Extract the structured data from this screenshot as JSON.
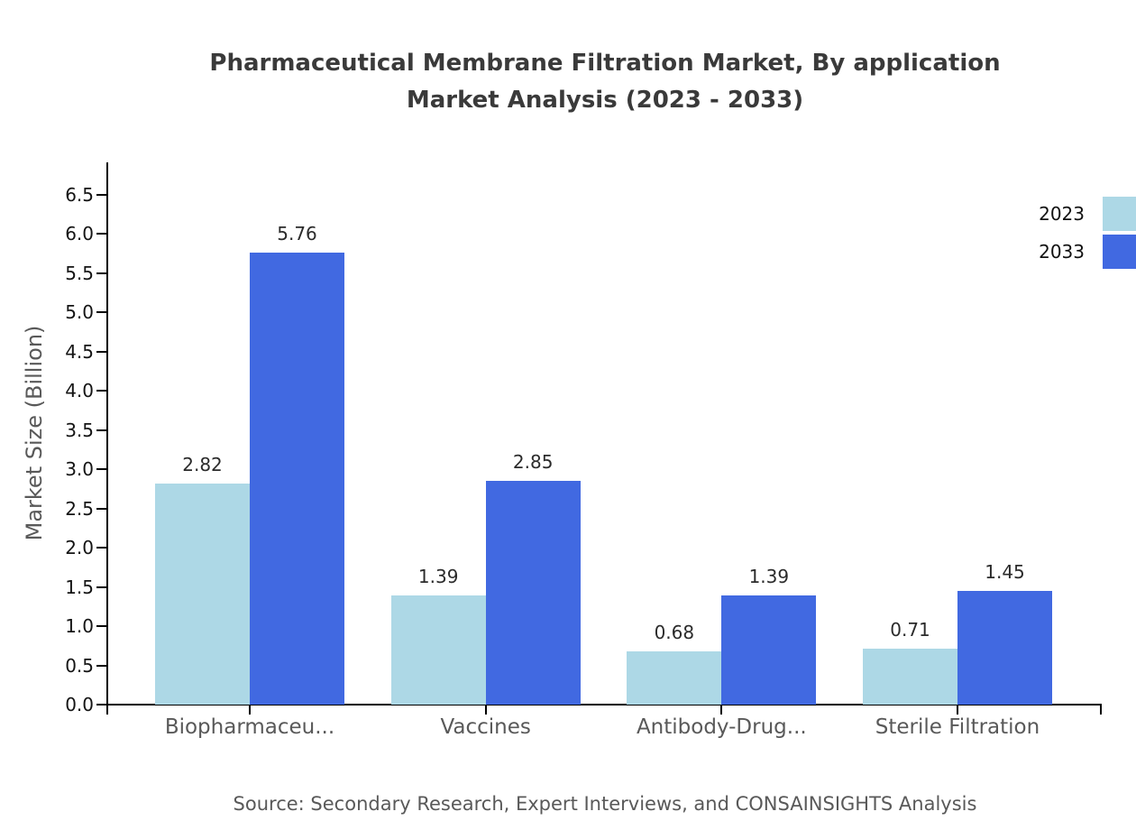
{
  "title": {
    "line1": "Pharmaceutical Membrane Filtration Market, By application",
    "line2": "Market Analysis (2023 - 2033)"
  },
  "source": "Source: Secondary Research, Expert Interviews, and CONSAINSIGHTS Analysis",
  "legend": {
    "position": "top-right",
    "items": [
      {
        "label": "2023",
        "color": "#ADD8E6"
      },
      {
        "label": "2033",
        "color": "#4169E1"
      }
    ]
  },
  "chart_data": {
    "type": "bar",
    "title": "Pharmaceutical Membrane Filtration Market, By application Market Analysis (2023 - 2033)",
    "categories": [
      "Biopharmaceu...",
      "Vaccines",
      "Antibody-Drug...",
      "Sterile Filtration"
    ],
    "series": [
      {
        "name": "2023",
        "color": "#ADD8E6",
        "values": [
          2.82,
          1.39,
          0.68,
          0.71
        ]
      },
      {
        "name": "2033",
        "color": "#4169E1",
        "values": [
          5.76,
          2.85,
          1.39,
          1.45
        ]
      }
    ],
    "value_labels": [
      "2.82",
      "5.76",
      "1.39",
      "2.85",
      "0.68",
      "1.39",
      "0.71",
      "1.45"
    ],
    "xlabel": "",
    "ylabel": "Market Size (Billion)",
    "ylim": [
      0.0,
      6.5
    ],
    "ytick_step": 0.5,
    "ytick_labels": [
      "0.0",
      "0.5",
      "1.0",
      "1.5",
      "2.0",
      "2.5",
      "3.0",
      "3.5",
      "4.0",
      "4.5",
      "5.0",
      "5.5",
      "6.0",
      "6.5"
    ],
    "grid": false,
    "legend_position": "top-right",
    "axis_color": "#000000",
    "tick_label_color": "#141414",
    "category_label_color": "#595959"
  }
}
